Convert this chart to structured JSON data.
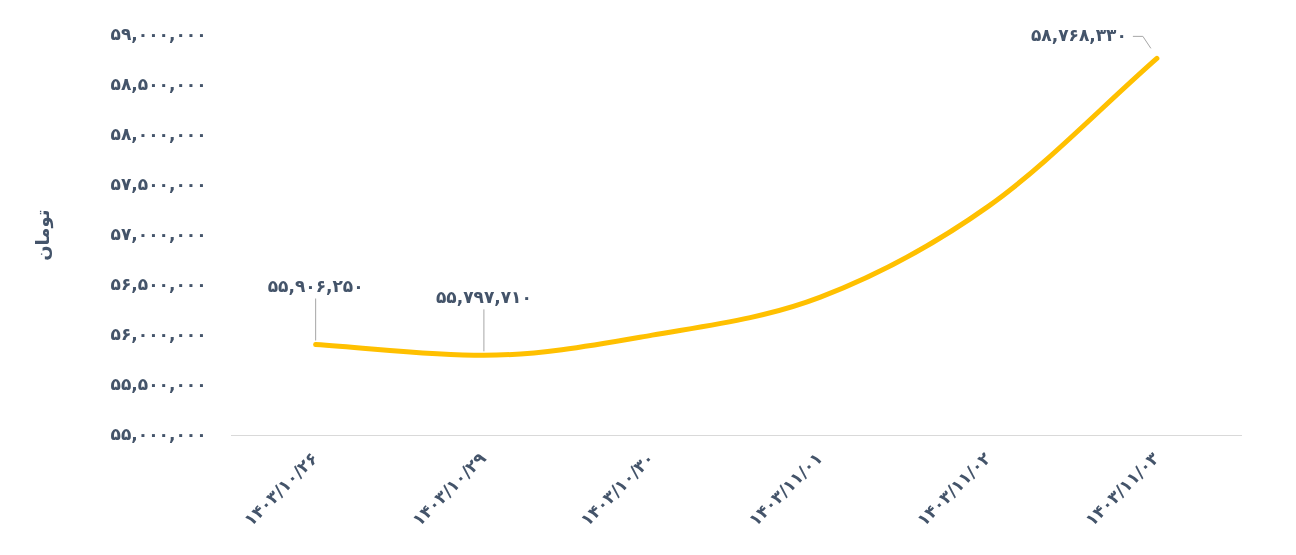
{
  "chart_data": {
    "type": "line",
    "ylabel": "تومان",
    "categories": [
      "۱۴۰۳/۱۰/۲۶",
      "۱۴۰۳/۱۰/۲۹",
      "۱۴۰۳/۱۰/۳۰",
      "۱۴۰۳/۱۱/۰۱",
      "۱۴۰۳/۱۱/۰۲",
      "۱۴۰۳/۱۱/۰۳"
    ],
    "series": [
      {
        "color": "#ffc000",
        "values": [
          55906250,
          55797710,
          56000000,
          56380000,
          57290000,
          58768330
        ],
        "value_labels": [
          "۵۵,۹۰۶,۲۵۰",
          "۵۵,۷۹۷,۷۱۰",
          null,
          null,
          null,
          "۵۸,۷۶۸,۳۳۰"
        ]
      }
    ],
    "ylim": [
      55000000,
      59000000
    ],
    "yticks": [
      {
        "value": 55000000,
        "label": "۵۵,۰۰۰,۰۰۰"
      },
      {
        "value": 55500000,
        "label": "۵۵,۵۰۰,۰۰۰"
      },
      {
        "value": 56000000,
        "label": "۵۶,۰۰۰,۰۰۰"
      },
      {
        "value": 56500000,
        "label": "۵۶,۵۰۰,۰۰۰"
      },
      {
        "value": 57000000,
        "label": "۵۷,۰۰۰,۰۰۰"
      },
      {
        "value": 57500000,
        "label": "۵۷,۵۰۰,۰۰۰"
      },
      {
        "value": 58000000,
        "label": "۵۸,۰۰۰,۰۰۰"
      },
      {
        "value": 58500000,
        "label": "۵۸,۵۰۰,۰۰۰"
      },
      {
        "value": 59000000,
        "label": "۵۹,۰۰۰,۰۰۰"
      }
    ],
    "grid": false,
    "legend": false,
    "marker": "none",
    "line_style": "solid"
  }
}
